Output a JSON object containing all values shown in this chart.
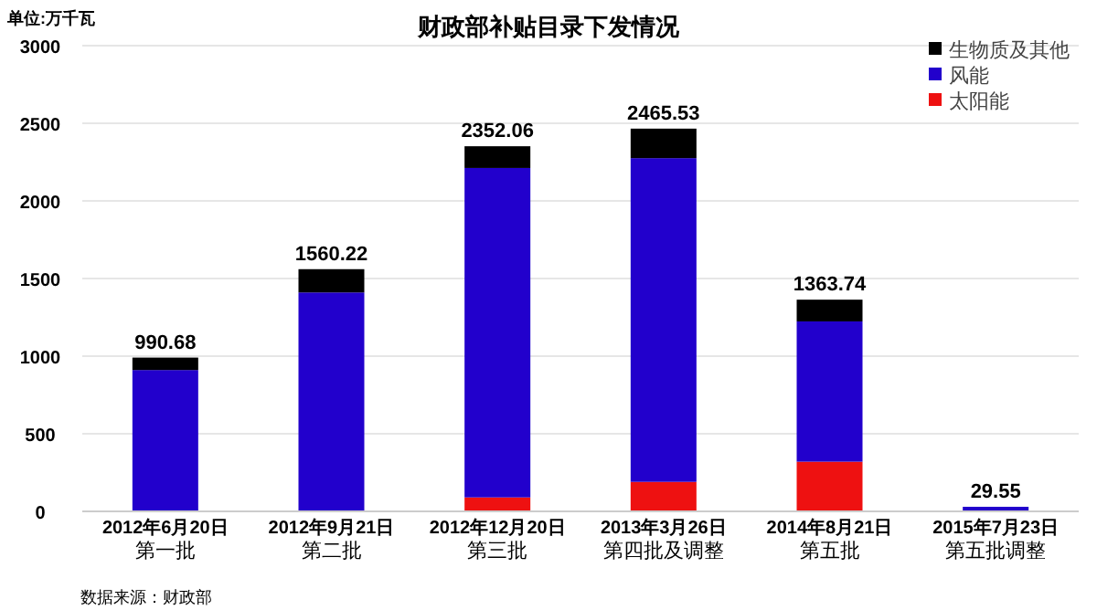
{
  "chart_data": {
    "type": "bar",
    "title": "财政部补贴目录下发情况",
    "ylabel": "单位:万千瓦",
    "categories": [
      "2012年6月20日第一批",
      "2012年9月21日第二批",
      "2012年12月20日第三批",
      "2013年3月26日第四批及调整",
      "2014年8月21日第五批",
      "2015年7月23日第五批调整"
    ],
    "stacked": true,
    "series": [
      {
        "name": "太阳能",
        "color": "#ee1111",
        "values": [
          0,
          0,
          90,
          190,
          320,
          0
        ]
      },
      {
        "name": "风能",
        "color": "#2200cc",
        "values": [
          910.68,
          1410.22,
          2122.06,
          2085.53,
          903.74,
          29.55
        ]
      },
      {
        "name": "生物质及其他",
        "color": "#000000",
        "values": [
          80,
          150,
          140,
          190,
          140,
          0
        ]
      }
    ],
    "totals": [
      "990.68",
      "1560.22",
      "2352.06",
      "2465.53",
      "1363.74",
      "29.55"
    ],
    "ylim": [
      0,
      3000
    ],
    "yticks": [
      0,
      500,
      1000,
      1500,
      2000,
      2500,
      3000
    ],
    "grid": "y",
    "legend": "top right",
    "annotations": [
      "数据来源：财政部"
    ]
  }
}
